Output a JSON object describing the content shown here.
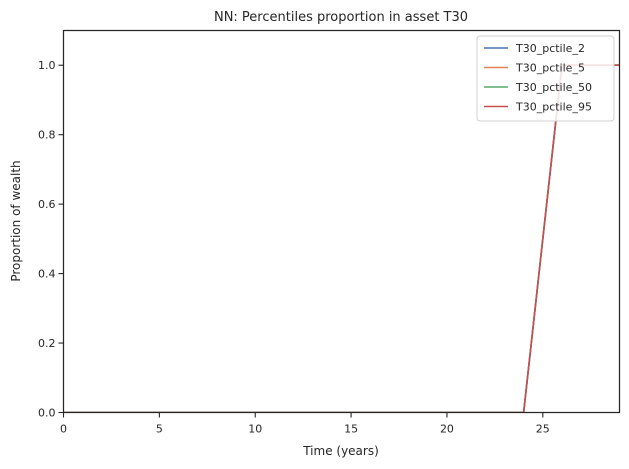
{
  "chart_data": {
    "type": "line",
    "title": "NN: Percentiles proportion in asset T30",
    "xlabel": "Time (years)",
    "ylabel": "Proportion of wealth",
    "xlim": [
      0,
      29
    ],
    "ylim": [
      0,
      1.1
    ],
    "xticks": [
      0,
      5,
      10,
      15,
      20,
      25
    ],
    "yticks": [
      0.0,
      0.2,
      0.4,
      0.6,
      0.8,
      1.0
    ],
    "xtick_labels": [
      "0",
      "5",
      "10",
      "15",
      "20",
      "25"
    ],
    "ytick_labels": [
      "0.0",
      "0.2",
      "0.4",
      "0.6",
      "0.8",
      "1.0"
    ],
    "grid": false,
    "legend_position": "top-right",
    "x": [
      0,
      1,
      2,
      3,
      4,
      5,
      6,
      7,
      8,
      9,
      10,
      11,
      12,
      13,
      14,
      15,
      16,
      17,
      18,
      19,
      20,
      21,
      22,
      23,
      24,
      25,
      26,
      27,
      28,
      29
    ],
    "series": [
      {
        "name": "T30_pctile_2",
        "color": "#4c72b0",
        "values": [
          0,
          0,
          0,
          0,
          0,
          0,
          0,
          0,
          0,
          0,
          0,
          0,
          0,
          0,
          0,
          0,
          0,
          0,
          0,
          0,
          0,
          0,
          0,
          0,
          0,
          0.5,
          1,
          1,
          1,
          1
        ]
      },
      {
        "name": "T30_pctile_5",
        "color": "#dd8452",
        "values": [
          0,
          0,
          0,
          0,
          0,
          0,
          0,
          0,
          0,
          0,
          0,
          0,
          0,
          0,
          0,
          0,
          0,
          0,
          0,
          0,
          0,
          0,
          0,
          0,
          0,
          0.5,
          1,
          1,
          1,
          1
        ]
      },
      {
        "name": "T30_pctile_50",
        "color": "#55a868",
        "values": [
          0,
          0,
          0,
          0,
          0,
          0,
          0,
          0,
          0,
          0,
          0,
          0,
          0,
          0,
          0,
          0,
          0,
          0,
          0,
          0,
          0,
          0,
          0,
          0,
          0,
          0.5,
          1,
          1,
          1,
          1
        ]
      },
      {
        "name": "T30_pctile_95",
        "color": "#c44e52",
        "values": [
          0,
          0,
          0,
          0,
          0,
          0,
          0,
          0,
          0,
          0,
          0,
          0,
          0,
          0,
          0,
          0,
          0,
          0,
          0,
          0,
          0,
          0,
          0,
          0,
          0,
          0.5,
          1,
          1,
          1,
          1
        ]
      }
    ]
  }
}
